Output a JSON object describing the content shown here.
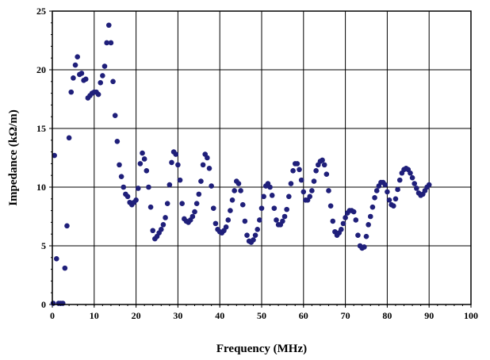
{
  "chart_data": {
    "type": "scatter",
    "xlabel": "Frequency (MHz)",
    "ylabel": "Impedance (kΩ/m)",
    "xlim": [
      0,
      100
    ],
    "ylim": [
      0,
      25
    ],
    "xticks": [
      0,
      10,
      20,
      30,
      40,
      50,
      60,
      70,
      80,
      90,
      100
    ],
    "yticks": [
      0,
      5,
      10,
      15,
      20,
      25
    ],
    "grid": true,
    "marker_color": "#1f1f7a",
    "series": [
      {
        "points": [
          [
            0.2,
            0.1
          ],
          [
            0.5,
            12.7
          ],
          [
            1.0,
            3.9
          ],
          [
            1.5,
            0.1
          ],
          [
            2.0,
            0.1
          ],
          [
            2.5,
            0.1
          ],
          [
            3.0,
            3.1
          ],
          [
            3.5,
            6.7
          ],
          [
            4.0,
            14.2
          ],
          [
            4.5,
            18.1
          ],
          [
            5.0,
            19.3
          ],
          [
            5.5,
            20.4
          ],
          [
            6.0,
            21.1
          ],
          [
            6.5,
            19.6
          ],
          [
            7.0,
            19.7
          ],
          [
            7.5,
            19.1
          ],
          [
            8.0,
            19.2
          ],
          [
            8.5,
            17.6
          ],
          [
            9.0,
            17.8
          ],
          [
            9.5,
            18.0
          ],
          [
            10.0,
            18.1
          ],
          [
            10.5,
            18.1
          ],
          [
            11.0,
            17.9
          ],
          [
            11.5,
            18.9
          ],
          [
            12.0,
            19.5
          ],
          [
            12.5,
            20.3
          ],
          [
            13.0,
            22.3
          ],
          [
            13.5,
            23.8
          ],
          [
            14.0,
            22.3
          ],
          [
            14.5,
            19.0
          ],
          [
            15.0,
            16.1
          ],
          [
            15.5,
            13.9
          ],
          [
            16.0,
            11.9
          ],
          [
            16.5,
            10.9
          ],
          [
            17.0,
            10.0
          ],
          [
            17.5,
            9.4
          ],
          [
            18.0,
            9.2
          ],
          [
            18.5,
            8.7
          ],
          [
            19.0,
            8.5
          ],
          [
            19.5,
            8.7
          ],
          [
            20.0,
            8.9
          ],
          [
            20.5,
            9.9
          ],
          [
            21.0,
            12.0
          ],
          [
            21.5,
            12.9
          ],
          [
            22.0,
            12.4
          ],
          [
            22.5,
            11.4
          ],
          [
            23.0,
            10.0
          ],
          [
            23.5,
            8.3
          ],
          [
            24.0,
            6.3
          ],
          [
            24.5,
            5.6
          ],
          [
            25.0,
            5.8
          ],
          [
            25.5,
            6.1
          ],
          [
            26.0,
            6.4
          ],
          [
            26.5,
            6.8
          ],
          [
            27.0,
            7.4
          ],
          [
            27.5,
            8.6
          ],
          [
            28.0,
            10.2
          ],
          [
            28.5,
            12.1
          ],
          [
            29.0,
            13.0
          ],
          [
            29.5,
            12.8
          ],
          [
            30.0,
            11.9
          ],
          [
            30.5,
            10.6
          ],
          [
            31.0,
            8.6
          ],
          [
            31.5,
            7.3
          ],
          [
            32.0,
            7.1
          ],
          [
            32.5,
            7.0
          ],
          [
            33.0,
            7.2
          ],
          [
            33.5,
            7.5
          ],
          [
            34.0,
            7.9
          ],
          [
            34.5,
            8.6
          ],
          [
            35.0,
            9.4
          ],
          [
            35.5,
            10.5
          ],
          [
            36.0,
            11.9
          ],
          [
            36.5,
            12.8
          ],
          [
            37.0,
            12.5
          ],
          [
            37.5,
            11.6
          ],
          [
            38.0,
            10.1
          ],
          [
            38.5,
            8.2
          ],
          [
            39.0,
            6.9
          ],
          [
            39.5,
            6.4
          ],
          [
            40.0,
            6.2
          ],
          [
            40.5,
            6.1
          ],
          [
            41.0,
            6.3
          ],
          [
            41.5,
            6.6
          ],
          [
            42.0,
            7.2
          ],
          [
            42.5,
            8.0
          ],
          [
            43.0,
            8.9
          ],
          [
            43.5,
            9.7
          ],
          [
            44.0,
            10.5
          ],
          [
            44.5,
            10.3
          ],
          [
            45.0,
            9.7
          ],
          [
            45.5,
            8.5
          ],
          [
            46.0,
            7.1
          ],
          [
            46.5,
            5.9
          ],
          [
            47.0,
            5.4
          ],
          [
            47.5,
            5.3
          ],
          [
            48.0,
            5.5
          ],
          [
            48.5,
            5.9
          ],
          [
            49.0,
            6.4
          ],
          [
            49.5,
            7.2
          ],
          [
            50.0,
            8.2
          ],
          [
            50.5,
            9.2
          ],
          [
            51.0,
            10.1
          ],
          [
            51.5,
            10.3
          ],
          [
            52.0,
            10.0
          ],
          [
            52.5,
            9.3
          ],
          [
            53.0,
            8.2
          ],
          [
            53.5,
            7.2
          ],
          [
            54.0,
            6.8
          ],
          [
            54.5,
            6.8
          ],
          [
            55.0,
            7.1
          ],
          [
            55.5,
            7.5
          ],
          [
            56.0,
            8.1
          ],
          [
            56.5,
            9.2
          ],
          [
            57.0,
            10.3
          ],
          [
            57.5,
            11.4
          ],
          [
            58.0,
            12.0
          ],
          [
            58.5,
            12.0
          ],
          [
            59.0,
            11.5
          ],
          [
            59.5,
            10.6
          ],
          [
            60.0,
            9.6
          ],
          [
            60.5,
            8.9
          ],
          [
            61.0,
            8.9
          ],
          [
            61.5,
            9.2
          ],
          [
            62.0,
            9.7
          ],
          [
            62.5,
            10.5
          ],
          [
            63.0,
            11.4
          ],
          [
            63.5,
            11.9
          ],
          [
            64.0,
            12.2
          ],
          [
            64.5,
            12.3
          ],
          [
            65.0,
            11.9
          ],
          [
            65.5,
            11.1
          ],
          [
            66.0,
            9.7
          ],
          [
            66.5,
            8.4
          ],
          [
            67.0,
            7.1
          ],
          [
            67.5,
            6.2
          ],
          [
            68.0,
            5.9
          ],
          [
            68.5,
            6.1
          ],
          [
            69.0,
            6.4
          ],
          [
            69.5,
            6.9
          ],
          [
            70.0,
            7.4
          ],
          [
            70.5,
            7.8
          ],
          [
            71.0,
            8.0
          ],
          [
            71.5,
            8.0
          ],
          [
            72.0,
            7.9
          ],
          [
            72.5,
            7.2
          ],
          [
            73.0,
            5.9
          ],
          [
            73.5,
            5.0
          ],
          [
            74.0,
            4.8
          ],
          [
            74.5,
            4.9
          ],
          [
            75.0,
            5.8
          ],
          [
            75.5,
            6.8
          ],
          [
            76.0,
            7.5
          ],
          [
            76.5,
            8.3
          ],
          [
            77.0,
            9.1
          ],
          [
            77.5,
            9.7
          ],
          [
            78.0,
            10.1
          ],
          [
            78.5,
            10.4
          ],
          [
            79.0,
            10.4
          ],
          [
            79.5,
            10.2
          ],
          [
            80.0,
            9.6
          ],
          [
            80.5,
            8.9
          ],
          [
            81.0,
            8.5
          ],
          [
            81.5,
            8.4
          ],
          [
            82.0,
            9.0
          ],
          [
            82.5,
            9.8
          ],
          [
            83.0,
            10.6
          ],
          [
            83.5,
            11.2
          ],
          [
            84.0,
            11.5
          ],
          [
            84.5,
            11.6
          ],
          [
            85.0,
            11.5
          ],
          [
            85.5,
            11.2
          ],
          [
            86.0,
            10.8
          ],
          [
            86.5,
            10.3
          ],
          [
            87.0,
            9.9
          ],
          [
            87.5,
            9.5
          ],
          [
            88.0,
            9.3
          ],
          [
            88.5,
            9.4
          ],
          [
            89.0,
            9.7
          ],
          [
            89.5,
            10.0
          ],
          [
            90.0,
            10.2
          ]
        ]
      }
    ]
  }
}
